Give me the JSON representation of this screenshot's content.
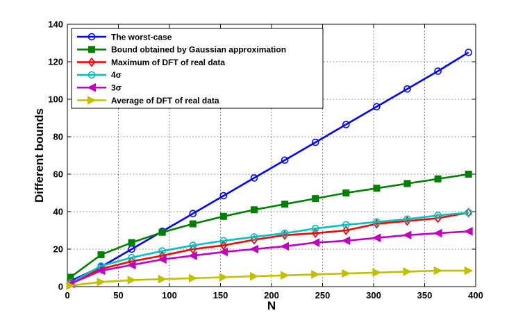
{
  "chart_data": {
    "type": "line",
    "title": "",
    "xlabel": "N",
    "ylabel": "Different bounds",
    "xlim": [
      0,
      400
    ],
    "ylim": [
      0,
      140
    ],
    "xticks": [
      0,
      50,
      100,
      150,
      200,
      250,
      300,
      350,
      400
    ],
    "yticks": [
      0,
      20,
      40,
      60,
      80,
      100,
      120,
      140
    ],
    "grid": true,
    "legend_position": "top-left",
    "x": [
      3,
      33,
      63,
      93,
      123,
      153,
      183,
      213,
      243,
      273,
      303,
      333,
      363,
      393
    ],
    "series": [
      {
        "name": "The worst-case",
        "marker": "circle",
        "color": "#0000ff",
        "values": [
          3,
          10.5,
          20,
          29.5,
          39,
          48.5,
          58,
          67.5,
          77,
          86.5,
          96,
          105.5,
          115,
          125
        ]
      },
      {
        "name": "Bound obtained by Gaussian approximation",
        "marker": "square",
        "color": "#008000",
        "values": [
          5,
          17,
          23.5,
          29,
          33.5,
          37.5,
          41,
          44,
          47,
          50,
          52.5,
          55,
          57.5,
          60
        ]
      },
      {
        "name": "Maximum of DFT of real data",
        "marker": "diamond",
        "color": "#ff0000",
        "values": [
          2,
          9.5,
          13.5,
          16.5,
          20,
          22,
          25,
          27.5,
          28.5,
          30,
          33.5,
          35,
          36.5,
          39.5
        ]
      },
      {
        "name": "4σ",
        "marker": "circle",
        "color": "#00c0c0",
        "values": [
          2,
          11,
          15.5,
          19,
          22,
          24.5,
          26.5,
          28.5,
          31,
          33,
          34.5,
          36,
          38,
          39.5
        ]
      },
      {
        "name": "3σ",
        "marker": "triangle-left",
        "color": "#c000c0",
        "values": [
          1.5,
          8.5,
          11.5,
          14.5,
          16.5,
          18.5,
          20,
          21.5,
          23.5,
          24.5,
          26,
          27.5,
          28.5,
          29.5
        ]
      },
      {
        "name": "Average of DFT of real data",
        "marker": "triangle-right",
        "color": "#c0c000",
        "values": [
          0.5,
          2.5,
          3.5,
          4,
          4.5,
          5,
          5.5,
          6,
          6.5,
          7,
          7.5,
          8,
          8.5,
          8.5
        ]
      }
    ]
  }
}
